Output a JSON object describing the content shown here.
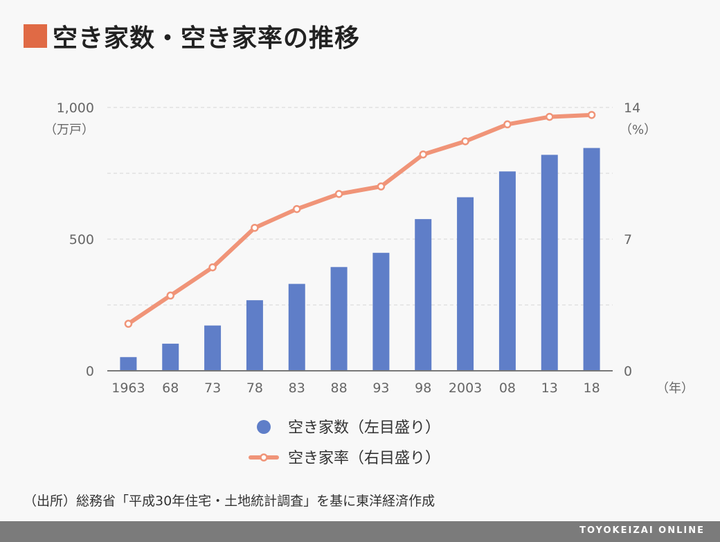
{
  "title": "空き家数・空き家率の推移",
  "colors": {
    "title_marker": "#e06a45",
    "bars": "#5f7ec8",
    "line": "#f09478"
  },
  "chart_data": {
    "type": "bar+line",
    "categories": [
      "1963",
      "68",
      "73",
      "78",
      "83",
      "88",
      "93",
      "98",
      "2003",
      "08",
      "13",
      "18"
    ],
    "left_axis": {
      "unit": "（万戸）",
      "ylim": [
        0,
        1000
      ],
      "ticks": [
        "0",
        "500",
        "1,000"
      ]
    },
    "right_axis": {
      "unit": "（%）",
      "ylim": [
        0,
        14
      ],
      "ticks": [
        "0",
        "7",
        "14"
      ]
    },
    "x_unit": "（年）",
    "series": [
      {
        "name": "空き家数（左目盛り）",
        "type": "bar",
        "axis": "left",
        "values": [
          52,
          103,
          172,
          268,
          330,
          394,
          448,
          576,
          659,
          757,
          820,
          846
        ]
      },
      {
        "name": "空き家率（右目盛り）",
        "type": "line",
        "axis": "right",
        "values": [
          2.5,
          4.0,
          5.5,
          7.6,
          8.6,
          9.4,
          9.8,
          11.5,
          12.2,
          13.1,
          13.5,
          13.6
        ]
      }
    ],
    "grid": true
  },
  "source": "（出所）総務省「平成30年住宅・土地統計調査」を基に東洋経済作成",
  "brand": "TOYOKEIZAI ONLINE"
}
